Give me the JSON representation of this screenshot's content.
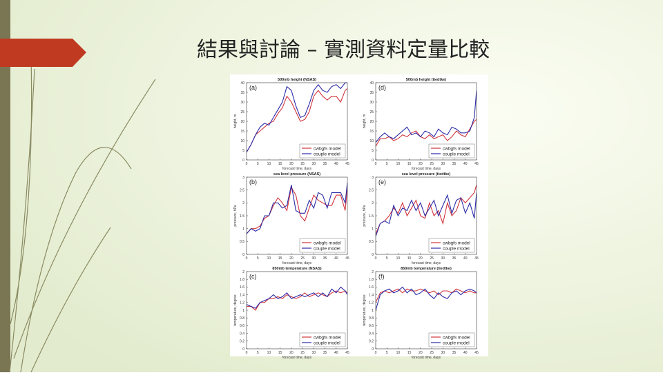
{
  "slide": {
    "title": "結果與討論 – 實測資料定量比較"
  },
  "chart_data": [
    {
      "type": "line",
      "title": "500mb height (NSAS)",
      "panel_label": "(a)",
      "xlabel": "forecast time, days",
      "ylabel": "height, m",
      "x": [
        0,
        2,
        4,
        6,
        8,
        10,
        12,
        14,
        16,
        18,
        20,
        22,
        24,
        26,
        28,
        30,
        32,
        34,
        36,
        38,
        40,
        42,
        44,
        45
      ],
      "series": [
        {
          "name": "cwbgfs model",
          "color": "#d0343c",
          "values": [
            4,
            8,
            13,
            15,
            17,
            19,
            20,
            24,
            27,
            33,
            30,
            25,
            20,
            21,
            25,
            33,
            36,
            33,
            31,
            33,
            33,
            30,
            36,
            37
          ]
        },
        {
          "name": "couple model",
          "color": "#2a2aa8",
          "values": [
            4,
            8,
            13,
            17,
            19,
            18,
            22,
            26,
            30,
            38,
            36,
            28,
            22,
            23,
            29,
            36,
            39,
            36,
            35,
            38,
            39,
            37,
            40,
            40
          ]
        }
      ],
      "xlim": [
        0,
        45
      ],
      "ylim": [
        0,
        40
      ],
      "xticks": [
        0,
        5,
        10,
        15,
        20,
        25,
        30,
        35,
        40,
        45
      ],
      "yticks": [
        0,
        5,
        10,
        15,
        20,
        25,
        30,
        35,
        40
      ],
      "legend": "lower right"
    },
    {
      "type": "line",
      "title": "500mb height (tiedtke)",
      "panel_label": "(d)",
      "xlabel": "forecast time, days",
      "ylabel": "height, m",
      "x": [
        0,
        2,
        4,
        6,
        8,
        10,
        12,
        14,
        16,
        18,
        20,
        22,
        24,
        26,
        28,
        30,
        32,
        34,
        36,
        38,
        40,
        42,
        44,
        45
      ],
      "series": [
        {
          "name": "cwbgfs model",
          "color": "#d0343c",
          "values": [
            7,
            11,
            11,
            12,
            10,
            11,
            13,
            12,
            14,
            15,
            12,
            11,
            13,
            11,
            12,
            13,
            10,
            12,
            15,
            13,
            12,
            16,
            20,
            21
          ]
        },
        {
          "name": "couple model",
          "color": "#2a2aa8",
          "values": [
            9,
            12,
            14,
            12,
            11,
            13,
            15,
            17,
            13,
            14,
            12,
            15,
            14,
            12,
            16,
            14,
            13,
            17,
            16,
            14,
            14,
            15,
            22,
            36
          ]
        }
      ],
      "xlim": [
        0,
        45
      ],
      "ylim": [
        0,
        40
      ],
      "xticks": [
        0,
        5,
        10,
        15,
        20,
        25,
        30,
        35,
        40,
        45
      ],
      "yticks": [
        0,
        5,
        10,
        15,
        20,
        25,
        30,
        35,
        40
      ],
      "legend": "lower right"
    },
    {
      "type": "line",
      "title": "sea level pressure (NSAS)",
      "panel_label": "(b)",
      "xlabel": "forecast time, days",
      "ylabel": "pressure, hPa",
      "x": [
        0,
        2,
        4,
        6,
        8,
        10,
        12,
        14,
        16,
        18,
        20,
        22,
        24,
        26,
        28,
        30,
        32,
        34,
        36,
        38,
        40,
        42,
        44,
        45
      ],
      "series": [
        {
          "name": "cwbgfs model",
          "color": "#d0343c",
          "values": [
            0.8,
            1.0,
            1.0,
            1.1,
            1.4,
            1.5,
            1.9,
            2.2,
            2.0,
            1.7,
            2.6,
            2.3,
            1.5,
            1.3,
            1.8,
            2.3,
            2.1,
            2.0,
            1.9,
            1.9,
            2.3,
            2.3,
            1.7,
            2.6
          ]
        },
        {
          "name": "couple model",
          "color": "#2a2aa8",
          "values": [
            0.8,
            1.0,
            0.9,
            1.0,
            1.5,
            1.5,
            2.0,
            2.0,
            1.8,
            1.9,
            2.7,
            1.7,
            1.6,
            1.6,
            2.1,
            1.8,
            2.4,
            2.3,
            1.8,
            2.4,
            2.4,
            2.4,
            2.0,
            2.8
          ]
        }
      ],
      "xlim": [
        0,
        45
      ],
      "ylim": [
        0,
        3
      ],
      "xticks": [
        0,
        5,
        10,
        15,
        20,
        25,
        30,
        35,
        40,
        45
      ],
      "yticks": [
        0,
        0.5,
        1,
        1.5,
        2,
        2.5,
        3
      ],
      "legend": "lower right"
    },
    {
      "type": "line",
      "title": "sea level pressure (tiedtke)",
      "panel_label": "(e)",
      "xlabel": "forecast time, days",
      "ylabel": "pressure, hPa",
      "x": [
        0,
        2,
        4,
        6,
        8,
        10,
        12,
        14,
        16,
        18,
        20,
        22,
        24,
        26,
        28,
        30,
        32,
        34,
        36,
        38,
        40,
        42,
        44,
        45
      ],
      "series": [
        {
          "name": "cwbgfs model",
          "color": "#d0343c",
          "values": [
            0.8,
            1.2,
            1.3,
            1.5,
            1.8,
            1.6,
            2.0,
            1.5,
            1.8,
            2.1,
            1.5,
            1.4,
            2.0,
            1.5,
            1.7,
            1.2,
            2.0,
            1.5,
            1.7,
            2.2,
            2.0,
            2.2,
            2.4,
            2.7
          ]
        },
        {
          "name": "couple model",
          "color": "#2a2aa8",
          "values": [
            0.7,
            1.2,
            1.3,
            1.2,
            1.9,
            1.5,
            1.8,
            1.7,
            2.1,
            1.7,
            2.0,
            1.5,
            1.8,
            2.1,
            1.5,
            1.9,
            2.3,
            1.6,
            2.1,
            2.2,
            1.6,
            2.0,
            1.4,
            2.4
          ]
        }
      ],
      "xlim": [
        0,
        45
      ],
      "ylim": [
        0,
        3
      ],
      "xticks": [
        0,
        5,
        10,
        15,
        20,
        25,
        30,
        35,
        40,
        45
      ],
      "yticks": [
        0,
        0.5,
        1,
        1.5,
        2,
        2.5,
        3
      ],
      "legend": "lower right"
    },
    {
      "type": "line",
      "title": "850mb temperature (NSAS)",
      "panel_label": "(c)",
      "xlabel": "forecast time, days",
      "ylabel": "temperature, degree",
      "x": [
        0,
        2,
        4,
        6,
        8,
        10,
        12,
        14,
        16,
        18,
        20,
        22,
        24,
        26,
        28,
        30,
        32,
        34,
        36,
        38,
        40,
        42,
        44,
        45
      ],
      "series": [
        {
          "name": "cwbgfs model",
          "color": "#d0343c",
          "values": [
            1.1,
            1.1,
            1.0,
            1.2,
            1.2,
            1.3,
            1.3,
            1.35,
            1.3,
            1.4,
            1.35,
            1.3,
            1.35,
            1.45,
            1.35,
            1.4,
            1.45,
            1.4,
            1.35,
            1.45,
            1.5,
            1.45,
            1.5,
            1.45
          ]
        },
        {
          "name": "couple model",
          "color": "#2a2aa8",
          "values": [
            1.15,
            1.1,
            1.05,
            1.2,
            1.25,
            1.3,
            1.4,
            1.3,
            1.35,
            1.45,
            1.3,
            1.35,
            1.4,
            1.35,
            1.4,
            1.45,
            1.35,
            1.45,
            1.35,
            1.55,
            1.45,
            1.6,
            1.5,
            1.4
          ]
        }
      ],
      "xlim": [
        0,
        45
      ],
      "ylim": [
        0,
        2
      ],
      "xticks": [
        0,
        5,
        10,
        15,
        20,
        25,
        30,
        35,
        40,
        45
      ],
      "yticks": [
        0,
        0.2,
        0.4,
        0.6,
        0.8,
        1,
        1.2,
        1.4,
        1.6,
        1.8,
        2
      ],
      "legend": "lower right"
    },
    {
      "type": "line",
      "title": "850mb temperature (tiedtke)",
      "panel_label": "(f)",
      "xlabel": "forecast time, days",
      "ylabel": "temperature, degree",
      "x": [
        0,
        2,
        4,
        6,
        8,
        10,
        12,
        14,
        16,
        18,
        20,
        22,
        24,
        26,
        28,
        30,
        32,
        34,
        36,
        38,
        40,
        42,
        44,
        45
      ],
      "series": [
        {
          "name": "cwbgfs model",
          "color": "#d0343c",
          "values": [
            1.2,
            1.45,
            1.5,
            1.45,
            1.5,
            1.55,
            1.45,
            1.55,
            1.5,
            1.5,
            1.55,
            1.5,
            1.45,
            1.5,
            1.4,
            1.5,
            1.5,
            1.45,
            1.55,
            1.5,
            1.45,
            1.5,
            1.45,
            1.45
          ]
        },
        {
          "name": "couple model",
          "color": "#2a2aa8",
          "values": [
            1.0,
            1.4,
            1.5,
            1.55,
            1.45,
            1.5,
            1.6,
            1.45,
            1.55,
            1.4,
            1.45,
            1.55,
            1.4,
            1.3,
            1.45,
            1.35,
            1.3,
            1.45,
            1.5,
            1.4,
            1.5,
            1.55,
            1.5,
            1.45
          ]
        }
      ],
      "xlim": [
        0,
        45
      ],
      "ylim": [
        0,
        2
      ],
      "xticks": [
        0,
        5,
        10,
        15,
        20,
        25,
        30,
        35,
        40,
        45
      ],
      "yticks": [
        0,
        0.2,
        0.4,
        0.6,
        0.8,
        1,
        1.2,
        1.4,
        1.6,
        1.8,
        2
      ],
      "legend": "lower right"
    }
  ]
}
